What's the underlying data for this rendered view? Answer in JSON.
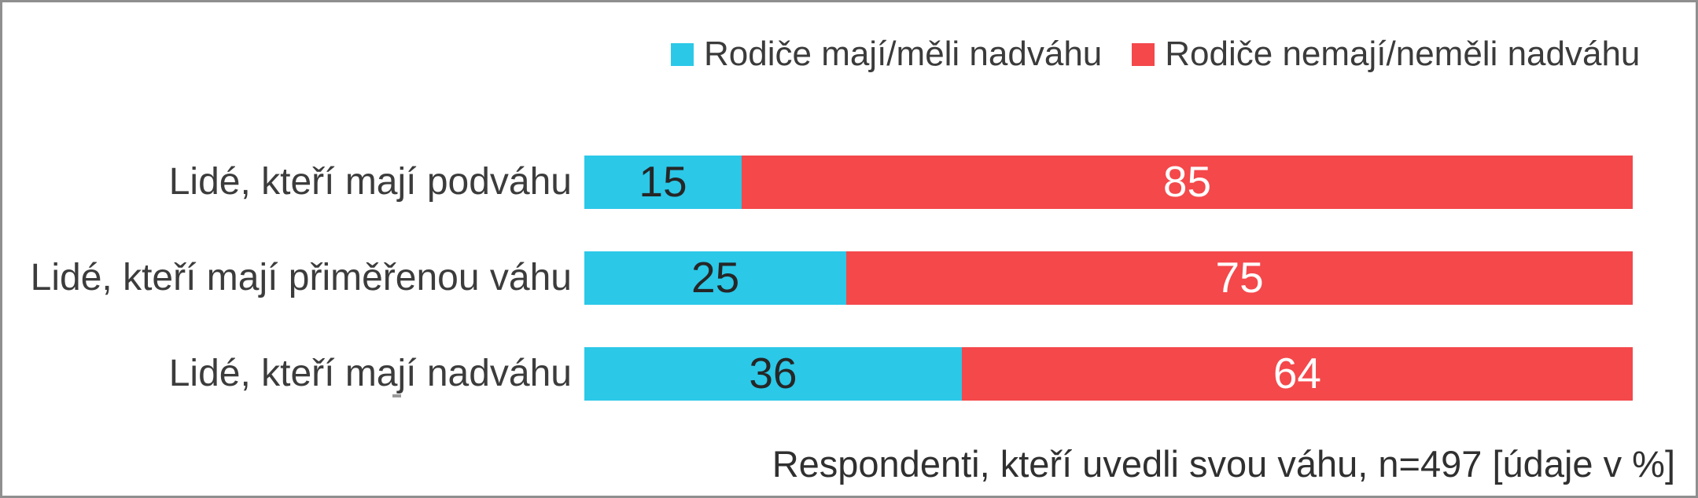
{
  "chart": {
    "caption": "Respondenti, kteří uvedli svou váhu, n=497 [údaje v %]"
  },
  "chart_data": {
    "type": "bar",
    "orientation": "horizontal",
    "stacked": true,
    "categories": [
      "Lidé, kteří mají podváhu",
      "Lidé, kteří mají přiměřenou váhu",
      "Lidé, kteří mají nadváhu"
    ],
    "series": [
      {
        "name": "Rodiče mají/měli nadváhu",
        "color": "#2bc8e8",
        "values": [
          15,
          25,
          36
        ]
      },
      {
        "name": "Rodiče nemají/neměli nadváhu",
        "color": "#f4484b",
        "values": [
          85,
          75,
          64
        ]
      }
    ],
    "xlim": [
      0,
      100
    ],
    "grid": false,
    "legend_position": "top-center",
    "value_labels": "inside-center",
    "value_label_colors": [
      "#262626",
      "#ffffff"
    ],
    "caption": "Respondenti, kteří uvedli svou váhu, n=497 [údaje v %]"
  }
}
